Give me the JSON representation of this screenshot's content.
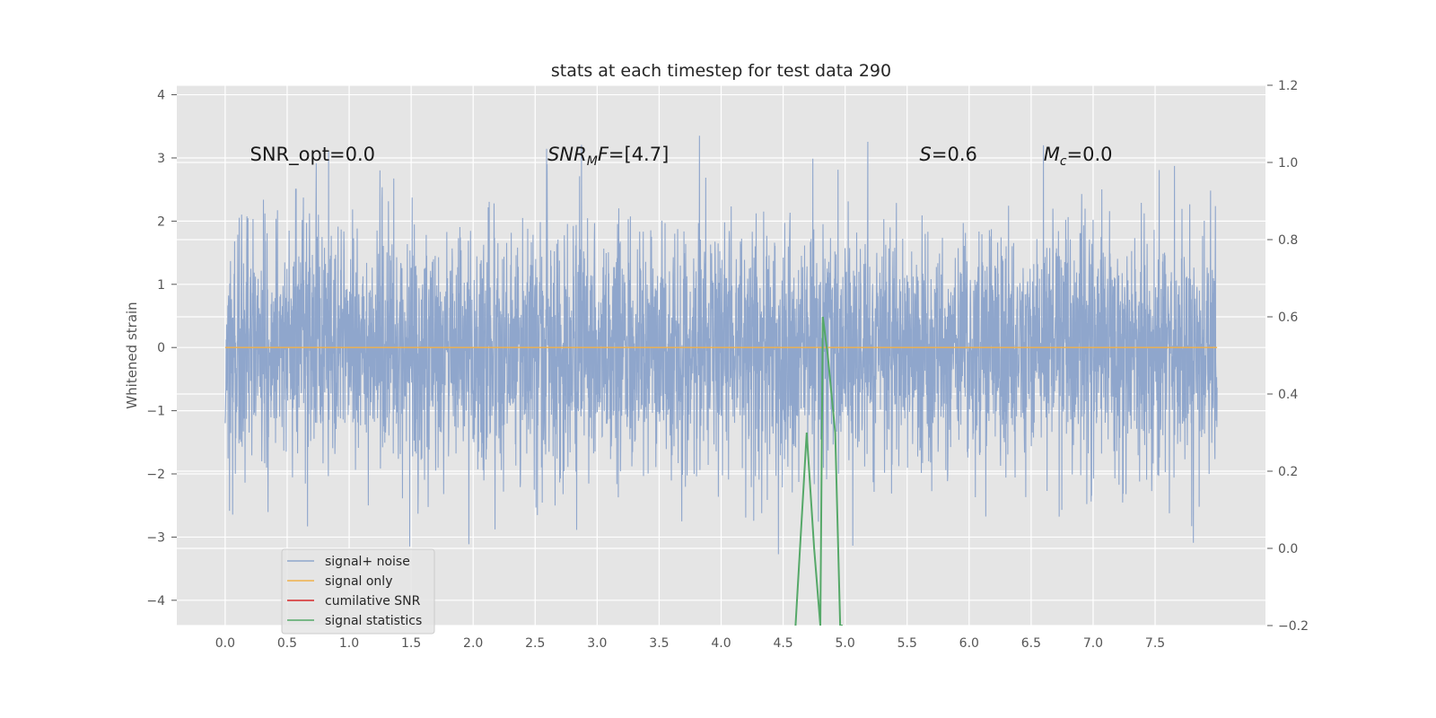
{
  "chart_data": {
    "type": "line",
    "title": "stats at each timestep for test data 290",
    "ylabel": "Whitened strain",
    "xlim": [
      -0.39,
      8.39
    ],
    "ylim": [
      -4.4,
      4.15
    ],
    "y2lim": [
      -0.2,
      1.2
    ],
    "xticks": [
      "0.0",
      "0.5",
      "1.0",
      "1.5",
      "2.0",
      "2.5",
      "3.0",
      "3.5",
      "4.0",
      "4.5",
      "5.0",
      "5.5",
      "6.0",
      "6.5",
      "7.0",
      "7.5"
    ],
    "yticks": [
      "4",
      "3",
      "2",
      "1",
      "0",
      "−1",
      "−2",
      "−3",
      "−4"
    ],
    "y2ticks": [
      "1.2",
      "1.0",
      "0.8",
      "0.6",
      "0.4",
      "0.2",
      "0.0",
      "−0.2"
    ],
    "grid": true,
    "legend_position": "lower-left",
    "colors": {
      "signal_noise": "#8fa6cc",
      "signal_only": "#f0b24b",
      "cumulative_snr": "#d62728",
      "signal_statistics": "#55a868",
      "background": "#e5e5e5",
      "grid": "#ffffff"
    },
    "annotations": [
      {
        "text": "SNR_opt=0.0",
        "x": 0.2,
        "y": 3.0
      },
      {
        "text": "SNR_MF=[4.7]",
        "x": 2.6,
        "y": 3.0
      },
      {
        "text": "S=0.6",
        "x": 5.6,
        "y": 3.0
      },
      {
        "text": "M_c=0.0",
        "x": 6.6,
        "y": 3.0
      }
    ],
    "series": [
      {
        "name": "signal+ noise",
        "kind": "noise",
        "x_range": [
          0.0,
          8.0
        ],
        "std": 0.95
      },
      {
        "name": "signal only",
        "kind": "line",
        "x": [
          0.0,
          8.0
        ],
        "y": [
          0.0,
          0.0
        ]
      },
      {
        "name": "cumilative SNR",
        "kind": "line",
        "x": [],
        "y": []
      },
      {
        "name": "signal statistics",
        "kind": "line",
        "axis": "right",
        "x": [
          4.6,
          4.69,
          4.75,
          4.8,
          4.82,
          4.86,
          4.92,
          4.96,
          4.98
        ],
        "y": [
          -0.2,
          0.3,
          0.0,
          -0.2,
          0.6,
          0.5,
          0.3,
          -0.2,
          -0.2
        ]
      }
    ]
  }
}
